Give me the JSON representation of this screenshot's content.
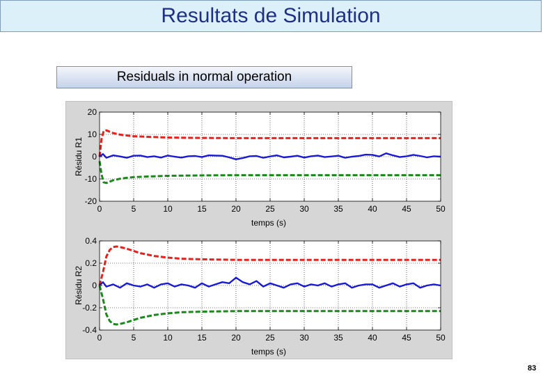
{
  "slide": {
    "title": "Resultats de Simulation",
    "subtitle": "Residuals in normal operation",
    "page_number": "83"
  },
  "colors": {
    "title_bg": "#dcf0fa",
    "title_text": "#1f2f86",
    "upper_bound": "#e8201c",
    "residual": "#1a1ad6",
    "lower_bound": "#1a8a1a",
    "figure_bg": "#d6d6d6"
  },
  "chart_data": [
    {
      "type": "line",
      "xlabel": "temps (s)",
      "ylabel": "Résidu R1",
      "xlim": [
        0,
        50
      ],
      "ylim": [
        -20,
        20
      ],
      "xticks": [
        "0",
        "5",
        "10",
        "15",
        "20",
        "25",
        "30",
        "35",
        "40",
        "45",
        "50"
      ],
      "yticks": [
        "20",
        "10",
        "0",
        "-10",
        "-20"
      ],
      "grid": true,
      "series": [
        {
          "role": "upper",
          "color": "#e8201c",
          "style": "dashed",
          "x": [
            0,
            0.3,
            0.6,
            1,
            1.5,
            2,
            3,
            4,
            5,
            7,
            10,
            15,
            20,
            25,
            30,
            35,
            40,
            45,
            50
          ],
          "y": [
            0,
            8,
            11.5,
            11.8,
            11.2,
            10.6,
            9.9,
            9.5,
            9.2,
            8.9,
            8.6,
            8.4,
            8.3,
            8.3,
            8.3,
            8.3,
            8.3,
            8.3,
            8.3
          ]
        },
        {
          "role": "residual",
          "color": "#1a1ad6",
          "style": "solid",
          "x": [
            0,
            0.5,
            1,
            2,
            3,
            4,
            5,
            6,
            7,
            8,
            9,
            10,
            11,
            12,
            13,
            14,
            15,
            16,
            17,
            18,
            19,
            20,
            21,
            22,
            23,
            24,
            25,
            26,
            27,
            28,
            29,
            30,
            31,
            32,
            33,
            34,
            35,
            36,
            37,
            38,
            39,
            40,
            41,
            42,
            43,
            44,
            45,
            46,
            47,
            48,
            49,
            50
          ],
          "y": [
            0,
            1.2,
            -0.5,
            0.6,
            0.1,
            -0.5,
            0.4,
            0.5,
            -0.2,
            0.2,
            -0.4,
            0.5,
            0,
            -0.4,
            0.2,
            0.3,
            -0.2,
            0.6,
            0.5,
            0.4,
            -0.3,
            -1.2,
            -0.6,
            0.2,
            0.3,
            -0.5,
            0.1,
            0.6,
            -0.3,
            0,
            0.4,
            -0.4,
            0.2,
            0.5,
            -0.2,
            0.1,
            0.4,
            -0.5,
            0,
            0.3,
            0.9,
            0.8,
            0.1,
            1.5,
            0.6,
            -0.2,
            0.2,
            0.8,
            0.3,
            -0.3,
            0.2,
            0
          ]
        },
        {
          "role": "lower",
          "color": "#1a8a1a",
          "style": "dashed",
          "x": [
            0,
            0.3,
            0.6,
            1,
            1.5,
            2,
            3,
            4,
            5,
            7,
            10,
            15,
            20,
            25,
            30,
            35,
            40,
            45,
            50
          ],
          "y": [
            -2,
            -8,
            -11.5,
            -11.8,
            -11.2,
            -10.6,
            -9.9,
            -9.5,
            -9.2,
            -8.9,
            -8.6,
            -8.4,
            -8.3,
            -8.3,
            -8.3,
            -8.3,
            -8.3,
            -8.3,
            -8.3
          ]
        }
      ]
    },
    {
      "type": "line",
      "xlabel": "temps (s)",
      "ylabel": "Résidu R2",
      "xlim": [
        0,
        50
      ],
      "ylim": [
        -0.4,
        0.4
      ],
      "xticks": [
        "0",
        "5",
        "10",
        "15",
        "20",
        "25",
        "30",
        "35",
        "40",
        "45",
        "50"
      ],
      "yticks": [
        "0.4",
        "0.2",
        "0",
        "-0.2",
        "-0.4"
      ],
      "grid": true,
      "series": [
        {
          "role": "upper",
          "color": "#e8201c",
          "style": "dashed",
          "x": [
            0,
            0.5,
            1,
            1.5,
            2,
            2.5,
            3,
            4,
            5,
            6,
            8,
            10,
            12,
            15,
            18,
            20,
            25,
            30,
            35,
            40,
            45,
            50
          ],
          "y": [
            0,
            0.12,
            0.26,
            0.32,
            0.345,
            0.35,
            0.345,
            0.33,
            0.31,
            0.29,
            0.265,
            0.25,
            0.24,
            0.235,
            0.232,
            0.23,
            0.23,
            0.23,
            0.23,
            0.23,
            0.23,
            0.23
          ]
        },
        {
          "role": "residual",
          "color": "#1a1ad6",
          "style": "solid",
          "x": [
            0,
            0.5,
            1,
            2,
            3,
            4,
            5,
            6,
            7,
            8,
            9,
            10,
            11,
            12,
            13,
            14,
            15,
            16,
            17,
            18,
            19,
            20,
            21,
            22,
            23,
            24,
            25,
            26,
            27,
            28,
            29,
            30,
            31,
            32,
            33,
            34,
            35,
            36,
            37,
            38,
            39,
            40,
            41,
            42,
            43,
            44,
            45,
            46,
            47,
            48,
            49,
            50
          ],
          "y": [
            0,
            0.03,
            -0.01,
            0.01,
            -0.02,
            0.02,
            0,
            -0.01,
            0.01,
            -0.02,
            0.01,
            0.02,
            -0.01,
            0.01,
            0,
            -0.02,
            0.02,
            -0.01,
            0.01,
            0.03,
            0.02,
            0.07,
            0.03,
            0.01,
            0.04,
            -0.01,
            0.02,
            0,
            -0.02,
            0.01,
            0.02,
            -0.01,
            0.01,
            0,
            0.02,
            -0.01,
            0.01,
            0.02,
            -0.02,
            0,
            0.01,
            0.01,
            -0.02,
            0,
            0.02,
            -0.01,
            0.01,
            0.02,
            -0.02,
            0,
            0.01,
            0
          ]
        },
        {
          "role": "lower",
          "color": "#1a8a1a",
          "style": "dashed",
          "x": [
            0,
            0.5,
            1,
            1.5,
            2,
            2.5,
            3,
            4,
            5,
            6,
            8,
            10,
            12,
            15,
            18,
            20,
            25,
            30,
            35,
            40,
            45,
            50
          ],
          "y": [
            0,
            -0.12,
            -0.26,
            -0.32,
            -0.345,
            -0.35,
            -0.345,
            -0.33,
            -0.31,
            -0.29,
            -0.265,
            -0.25,
            -0.24,
            -0.235,
            -0.232,
            -0.23,
            -0.23,
            -0.23,
            -0.23,
            -0.23,
            -0.23,
            -0.23
          ]
        }
      ]
    }
  ]
}
